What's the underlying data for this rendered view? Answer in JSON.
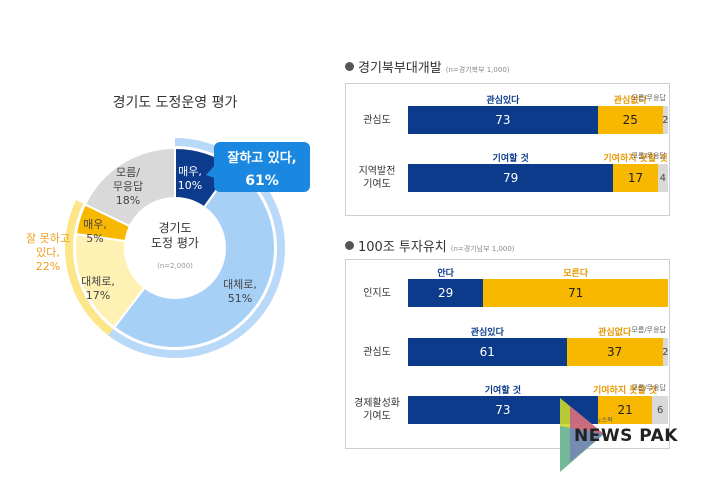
{
  "chart_data": [
    {
      "type": "pie",
      "title": "경기도 도정운영 평가",
      "center_label": "경기도\n도정 평가",
      "center_note": "(n=2,000)",
      "slices": [
        {
          "label": "매우,",
          "value": 10,
          "value_label": "10%",
          "color": "#0d3b8c"
        },
        {
          "label": "대체로,",
          "value": 51,
          "value_label": "51%",
          "color": "#a6d0f5"
        },
        {
          "label": "대체로,",
          "value": 17,
          "value_label": "17%",
          "color": "#fff0b3"
        },
        {
          "label": "매우,",
          "value": 5,
          "value_label": "5%",
          "color": "#f9b800"
        },
        {
          "label": "모름/\n무응답",
          "value": 18,
          "value_label": "18%",
          "color": "#d9d9d9"
        }
      ],
      "groups": [
        {
          "label": "잘하고 있다,",
          "value_label": "61%",
          "color": "#1a88e0"
        },
        {
          "label": "잘 못하고\n있다,",
          "value_label": "22%",
          "color": "#f0a020"
        }
      ]
    },
    {
      "type": "bar",
      "stacked": true,
      "title": "경기북부대개발",
      "note": "(n=경기북부 1,000)",
      "rows": [
        {
          "label": "관심도",
          "values": [
            73,
            25,
            2
          ],
          "series": [
            "관심있다",
            "관심없다",
            "모름/무응답"
          ]
        },
        {
          "label": "지역발전\n기여도",
          "values": [
            79,
            17,
            4
          ],
          "series": [
            "기여할 것",
            "기여하지 못할 것",
            "모름/무응답"
          ]
        }
      ]
    },
    {
      "type": "bar",
      "stacked": true,
      "title": "100조 투자유치",
      "note": "(n=경기남부 1,000)",
      "rows": [
        {
          "label": "인지도",
          "values": [
            29,
            71
          ],
          "series": [
            "안다",
            "모른다"
          ]
        },
        {
          "label": "관심도",
          "values": [
            61,
            37,
            2
          ],
          "series": [
            "관심있다",
            "관심없다",
            "모름/무응답"
          ]
        },
        {
          "label": "경제활성화\n기여도",
          "values": [
            73,
            21,
            6
          ],
          "series": [
            "기여할 것",
            "기여하지 못할 것",
            "모름/무응답"
          ]
        }
      ]
    }
  ],
  "logo": {
    "text": "NEWS PAK",
    "small": "뉴스팍"
  }
}
